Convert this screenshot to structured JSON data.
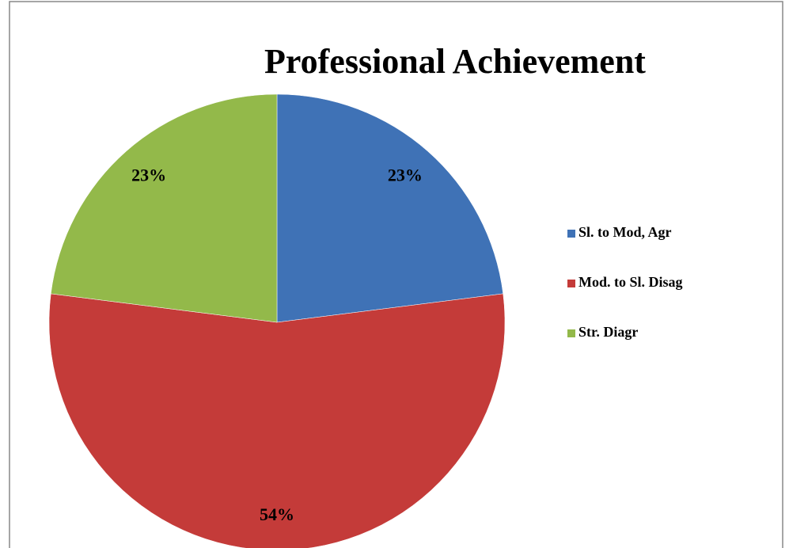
{
  "chart_data": {
    "type": "pie",
    "title": "Professional Achievement",
    "categories": [
      "Sl. to Mod, Agr",
      "Mod. to Sl. Disag",
      "Str. Diagr"
    ],
    "values": [
      23,
      54,
      23
    ],
    "value_labels": [
      "23%",
      "54%",
      "23%"
    ],
    "colors": [
      "#3f72b6",
      "#c43b39",
      "#93b94a"
    ],
    "legend": "right"
  }
}
